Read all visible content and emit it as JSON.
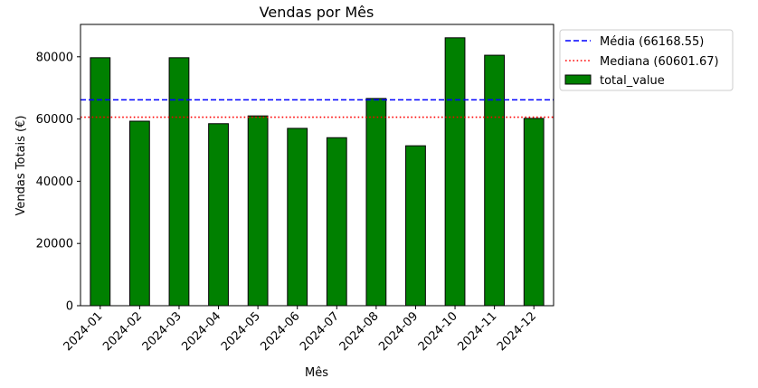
{
  "chart_data": {
    "type": "bar",
    "title": "Vendas por Mês",
    "xlabel": "Mês",
    "ylabel": "Vendas Totais (€)",
    "categories": [
      "2024-01",
      "2024-02",
      "2024-03",
      "2024-04",
      "2024-05",
      "2024-06",
      "2024-07",
      "2024-08",
      "2024-09",
      "2024-10",
      "2024-11",
      "2024-12"
    ],
    "series": [
      {
        "name": "total_value",
        "values": [
          79700,
          59300,
          79700,
          58500,
          61000,
          57000,
          54000,
          66600,
          51400,
          86100,
          80500,
          60200
        ],
        "color": "#008000",
        "edgecolor": "#000000"
      }
    ],
    "reference_lines": [
      {
        "label": "Média (66168.55)",
        "value": 66168.55,
        "color": "#0000ff",
        "style": "dashed"
      },
      {
        "label": "Mediana (60601.67)",
        "value": 60601.67,
        "color": "#ff0000",
        "style": "dotted"
      }
    ],
    "yticks": [
      0,
      20000,
      40000,
      60000,
      80000
    ],
    "ylim": [
      0,
      90405
    ],
    "grid": false,
    "legend_position": "outside-upper-right"
  }
}
